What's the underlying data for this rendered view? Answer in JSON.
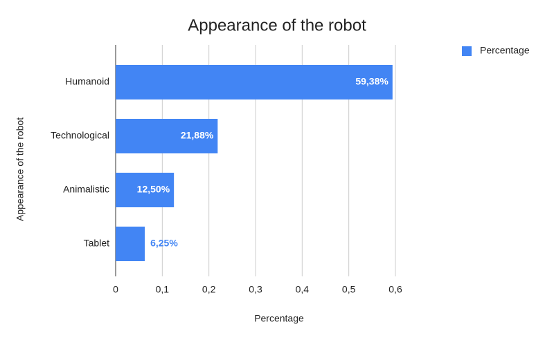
{
  "chart_data": {
    "type": "hbar",
    "title": "Appearance of the robot",
    "x_label": "Percentage",
    "y_label": "Appearance of the robot",
    "categories": [
      "Humanoid",
      "Technological",
      "Animalistic",
      "Tablet"
    ],
    "series": [
      {
        "name": "Percentage",
        "color": "#4285f4",
        "values": [
          0.5938,
          0.2188,
          0.125,
          0.0625
        ],
        "value_labels": [
          "59,38%",
          "21,88%",
          "12,50%",
          "6,25%"
        ]
      }
    ],
    "xlim": [
      0,
      0.6
    ],
    "xticks": [
      0,
      {
        "value": 0.1,
        "label": "0,1"
      },
      {
        "value": 0.2,
        "label": "0,2"
      },
      {
        "value": 0.3,
        "label": "0,3"
      },
      {
        "value": 0.4,
        "label": "0,4"
      },
      {
        "value": 0.5,
        "label": "0,5"
      },
      {
        "value": 0.6,
        "label": "0,6"
      }
    ],
    "grid": true,
    "legend": "top-right"
  }
}
